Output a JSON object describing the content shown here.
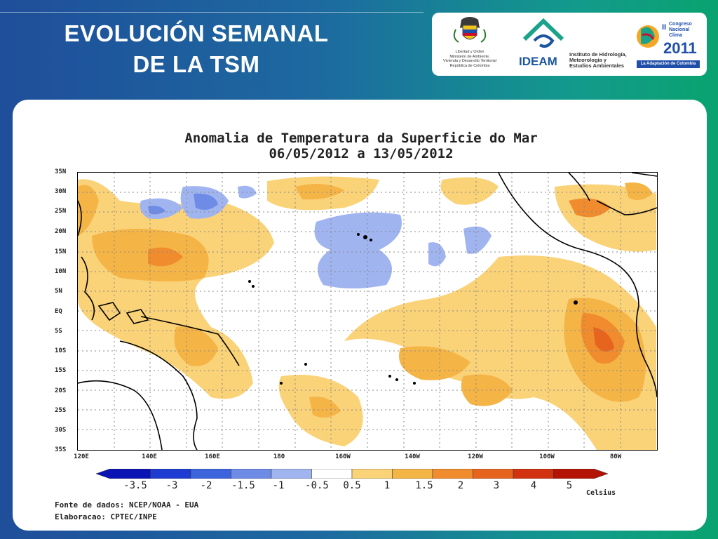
{
  "slide": {
    "title_line1": "EVOLUCIÓN SEMANAL",
    "title_line2": "DE LA TSM"
  },
  "logos": {
    "ministry_caption": [
      "Libertad y Orden",
      "Ministerio de Ambiente,",
      "Vivienda y Desarrollo Territorial",
      "República de Colombia"
    ],
    "ideam_word": "IDEAM",
    "ideam_institute": [
      "Instituto de Hidrología,",
      "Meteorología y",
      "Estudios Ambientales"
    ],
    "congress_caption": "La Adaptación de Colombia",
    "congress_year": "2011"
  },
  "map": {
    "title_line1": "Anomalia de Temperatura da Superficie do Mar",
    "title_line2": "06/05/2012 a 13/05/2012",
    "lat_labels": [
      "35N",
      "30N",
      "25N",
      "20N",
      "15N",
      "10N",
      "5N",
      "EQ",
      "5S",
      "10S",
      "15S",
      "20S",
      "25S",
      "30S",
      "35S"
    ],
    "lon_labels": [
      "120E",
      "140E",
      "160E",
      "180",
      "160W",
      "140W",
      "120W",
      "100W",
      "80W"
    ],
    "colorbar": {
      "labels": [
        "-3.5",
        "-3",
        "-2",
        "-1.5",
        "-1",
        "-0.5",
        "0.5",
        "1",
        "1.5",
        "2",
        "3",
        "4",
        "5"
      ],
      "unit": "Celsius",
      "colors": [
        "#0a14b4",
        "#1e3cd2",
        "#3c64dc",
        "#6e8ce6",
        "#a0b4f0",
        "#ffffff",
        "#fad278",
        "#f5b446",
        "#f08c2d",
        "#e6641e",
        "#d2320f",
        "#b41405"
      ]
    },
    "source_line": "Fonte de dados: NCEP/NOAA - EUA",
    "author_line": "Elaboracao: CPTEC/INPE"
  }
}
